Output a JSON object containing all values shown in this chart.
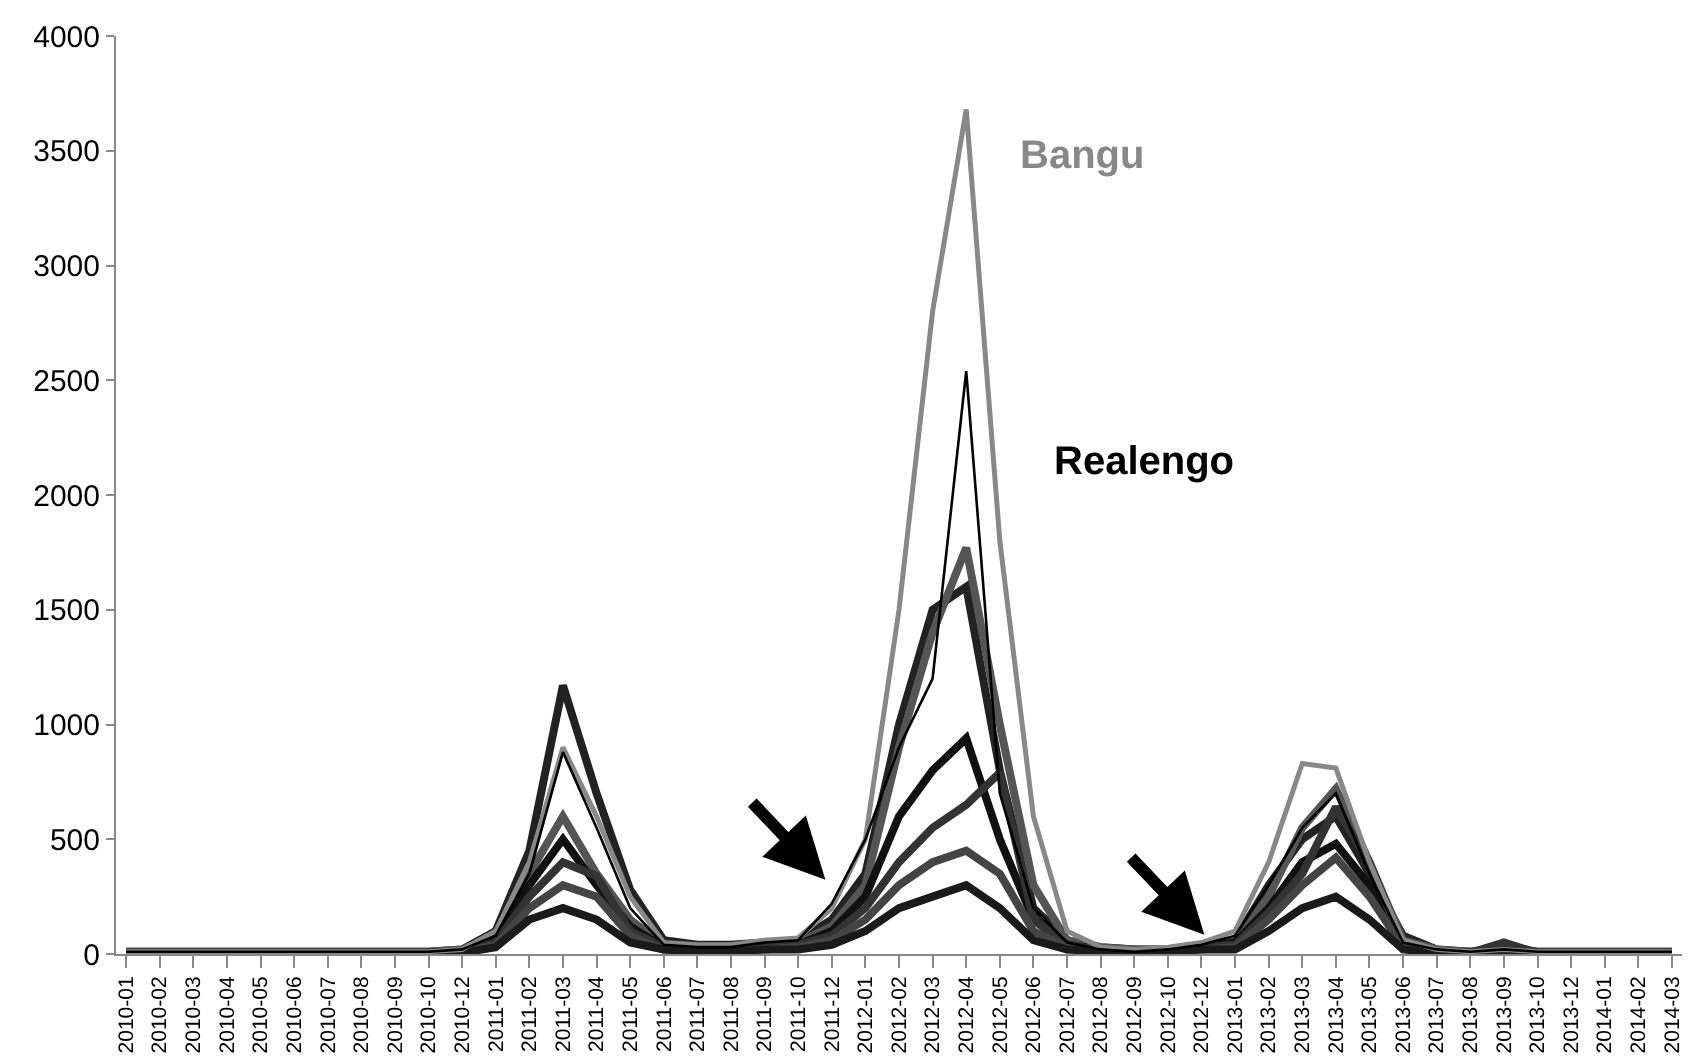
{
  "chart_data": {
    "type": "line",
    "categories": [
      "2010-01",
      "2010-02",
      "2010-03",
      "2010-04",
      "2010-05",
      "2010-06",
      "2010-07",
      "2010-08",
      "2010-09",
      "2010-10",
      "2010-12",
      "2011-01",
      "2011-02",
      "2011-03",
      "2011-04",
      "2011-05",
      "2011-06",
      "2011-07",
      "2011-08",
      "2011-09",
      "2011-10",
      "2011-12",
      "2012-01",
      "2012-02",
      "2012-03",
      "2012-04",
      "2012-05",
      "2012-06",
      "2012-07",
      "2012-08",
      "2012-09",
      "2012-10",
      "2012-12",
      "2013-01",
      "2013-02",
      "2013-03",
      "2013-04",
      "2013-05",
      "2013-06",
      "2013-07",
      "2013-08",
      "2013-09",
      "2013-10",
      "2013-12",
      "2014-01",
      "2014-02",
      "2014-03"
    ],
    "series": [
      {
        "color": "#222222",
        "values": [
          10,
          10,
          10,
          10,
          10,
          10,
          10,
          10,
          10,
          10,
          20,
          100,
          450,
          1170,
          700,
          280,
          60,
          40,
          40,
          50,
          60,
          150,
          350,
          1000,
          1500,
          1600,
          800,
          200,
          60,
          30,
          20,
          20,
          30,
          60,
          300,
          500,
          600,
          350,
          80,
          20,
          10,
          30,
          10,
          10,
          10,
          10,
          10
        ]
      },
      {
        "color": "#555555",
        "values": [
          10,
          10,
          10,
          10,
          10,
          10,
          10,
          10,
          10,
          10,
          20,
          80,
          350,
          600,
          350,
          150,
          40,
          30,
          30,
          40,
          50,
          120,
          300,
          900,
          1400,
          1770,
          1000,
          300,
          60,
          30,
          20,
          20,
          40,
          60,
          250,
          550,
          720,
          400,
          60,
          20,
          10,
          20,
          10,
          10,
          10,
          10,
          10
        ]
      },
      {
        "color": "#111111",
        "values": [
          5,
          5,
          5,
          5,
          5,
          5,
          5,
          5,
          5,
          5,
          10,
          60,
          300,
          500,
          300,
          120,
          30,
          20,
          20,
          30,
          40,
          100,
          250,
          600,
          800,
          940,
          500,
          150,
          40,
          20,
          10,
          10,
          30,
          50,
          200,
          400,
          480,
          300,
          40,
          10,
          5,
          15,
          5,
          5,
          5,
          5,
          5
        ]
      },
      {
        "color": "#333333",
        "values": [
          5,
          5,
          5,
          5,
          5,
          5,
          5,
          5,
          5,
          5,
          10,
          50,
          250,
          400,
          340,
          100,
          30,
          20,
          20,
          30,
          40,
          80,
          200,
          400,
          550,
          650,
          790,
          150,
          40,
          20,
          10,
          10,
          30,
          40,
          180,
          350,
          640,
          400,
          40,
          10,
          5,
          50,
          5,
          5,
          5,
          5,
          5
        ]
      },
      {
        "color": "#444444",
        "values": [
          5,
          5,
          5,
          5,
          5,
          5,
          5,
          5,
          5,
          5,
          10,
          40,
          200,
          300,
          250,
          80,
          20,
          20,
          20,
          20,
          30,
          60,
          150,
          300,
          400,
          450,
          350,
          100,
          30,
          10,
          10,
          10,
          20,
          30,
          150,
          300,
          420,
          250,
          30,
          10,
          5,
          10,
          5,
          5,
          5,
          5,
          5
        ]
      },
      {
        "color": "#1a1a1a",
        "values": [
          0,
          0,
          0,
          0,
          0,
          0,
          0,
          0,
          0,
          0,
          5,
          30,
          150,
          200,
          150,
          50,
          20,
          10,
          10,
          20,
          20,
          40,
          100,
          200,
          250,
          300,
          200,
          60,
          20,
          10,
          10,
          10,
          20,
          20,
          100,
          200,
          250,
          150,
          20,
          5,
          0,
          10,
          0,
          0,
          0,
          0,
          0
        ]
      },
      {
        "name": "Bangu",
        "color": "#888888",
        "values": [
          10,
          10,
          10,
          10,
          10,
          10,
          10,
          10,
          10,
          10,
          20,
          100,
          400,
          900,
          600,
          250,
          50,
          40,
          40,
          60,
          70,
          200,
          500,
          1500,
          2800,
          3680,
          1800,
          600,
          100,
          30,
          20,
          30,
          50,
          100,
          400,
          830,
          810,
          400,
          60,
          20,
          10,
          20,
          10,
          10,
          10,
          10,
          10
        ]
      },
      {
        "name": "Realengo",
        "color": "#000000",
        "values": [
          10,
          10,
          10,
          10,
          10,
          10,
          10,
          10,
          10,
          10,
          20,
          80,
          350,
          880,
          550,
          200,
          40,
          30,
          30,
          50,
          60,
          220,
          500,
          900,
          1200,
          2540,
          700,
          200,
          50,
          20,
          10,
          20,
          40,
          80,
          300,
          550,
          700,
          350,
          50,
          20,
          10,
          20,
          10,
          10,
          10,
          10,
          10
        ]
      }
    ],
    "ylim": [
      0,
      4000
    ],
    "yticks": [
      0,
      500,
      1000,
      1500,
      2000,
      2500,
      3000,
      3500,
      4000
    ],
    "legend": false
  }
}
